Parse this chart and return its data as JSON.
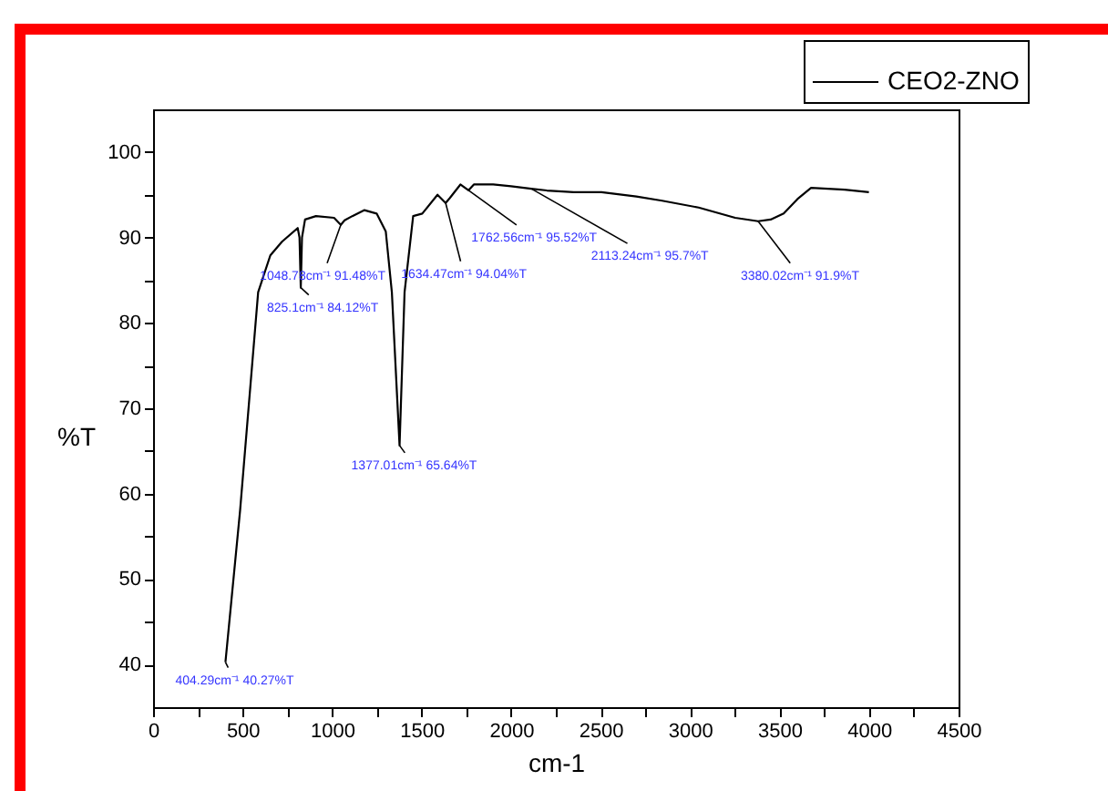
{
  "chart_data": {
    "type": "line",
    "xlabel": "cm-1",
    "ylabel": "%T",
    "legend": "top right",
    "xlim": [
      0,
      4500
    ],
    "ylim": [
      35,
      105
    ],
    "xticks": [
      0,
      {
        "value": 250,
        "label": null
      },
      500,
      {
        "value": 750,
        "label": null
      },
      1000,
      {
        "value": 1250,
        "label": null
      },
      1500,
      {
        "value": 1750,
        "label": null
      },
      2000,
      {
        "value": 2250,
        "label": null
      },
      2500,
      {
        "value": 2750,
        "label": null
      },
      3000,
      {
        "value": 3250,
        "label": null
      },
      3500,
      {
        "value": 3750,
        "label": null
      },
      4000,
      {
        "value": 4250,
        "label": null
      },
      4500
    ],
    "yticks": [
      40,
      {
        "value": 45,
        "label": null
      },
      50,
      {
        "value": 55,
        "label": null
      },
      60,
      {
        "value": 65,
        "label": null
      },
      70,
      {
        "value": 75,
        "label": null
      },
      80,
      {
        "value": 85,
        "label": null
      },
      90,
      {
        "value": 95,
        "label": null
      },
      100
    ],
    "series": [
      {
        "name": "CEO2-ZNO",
        "color": "#000000",
        "x": [
          404.29,
          486,
          587,
          655,
          720,
          808,
          818,
          825.1,
          832,
          849,
          910,
          1011,
          1048.78,
          1070,
          1113,
          1181,
          1249,
          1300,
          1334,
          1377.01,
          1405,
          1453,
          1504,
          1589,
          1634.47,
          1657,
          1717,
          1762.56,
          1792,
          1900,
          2000,
          2113.24,
          2200,
          2350,
          2505,
          2700,
          2844,
          3048,
          3252,
          3380.02,
          3450,
          3523,
          3600,
          3676,
          3863,
          3999
        ],
        "values": [
          40.27,
          58,
          83.6,
          87.9,
          89.5,
          91.1,
          90,
          84.12,
          90,
          92.1,
          92.5,
          92.3,
          91.48,
          92,
          92.5,
          93.2,
          92.8,
          90.7,
          83.6,
          65.64,
          83.6,
          92.5,
          92.8,
          95.0,
          94.04,
          94.6,
          96.2,
          95.52,
          96.2,
          96.2,
          96.0,
          95.7,
          95.5,
          95.3,
          95.3,
          94.8,
          94.3,
          93.5,
          92.3,
          91.9,
          92.1,
          92.8,
          94.5,
          95.8,
          95.6,
          95.3
        ]
      }
    ],
    "annotations": [
      {
        "text": "404.29cm⁻¹ 40.27%T",
        "x": 404.29,
        "y": 40.27
      },
      {
        "text": "825.1cm⁻¹ 84.12%T",
        "x": 825.1,
        "y": 84.12
      },
      {
        "text": "1048.78cm⁻¹ 91.48%T",
        "x": 1048.78,
        "y": 91.48
      },
      {
        "text": "1377.01cm⁻¹ 65.64%T",
        "x": 1377.01,
        "y": 65.64
      },
      {
        "text": "1634.47cm⁻¹ 94.04%T",
        "x": 1634.47,
        "y": 94.04
      },
      {
        "text": "1762.56cm⁻¹ 95.52%T",
        "x": 1762.56,
        "y": 95.52
      },
      {
        "text": "2113.24cm⁻¹ 95.7%T",
        "x": 2113.24,
        "y": 95.7
      },
      {
        "text": "3380.02cm⁻¹ 91.9%T",
        "x": 3380.02,
        "y": 91.9
      }
    ]
  }
}
